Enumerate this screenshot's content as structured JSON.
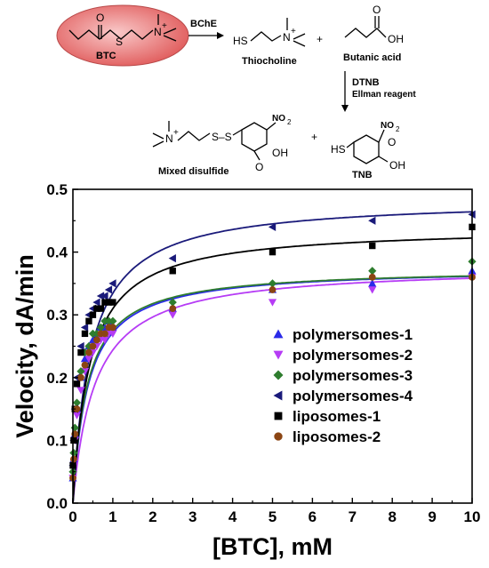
{
  "scheme": {
    "substrate": "BTC",
    "enzyme": "BChE",
    "product_1": "Thiocholine",
    "product_2": "Butanic acid",
    "reagent_line_1": "DTNB",
    "reagent_line_2": "Ellman reagent",
    "product_3": "Mixed disulfide",
    "product_4": "TNB",
    "plus": "+",
    "atom_S": "S",
    "atom_O": "O",
    "atom_OH": "OH",
    "atom_HS": "HS",
    "atom_N": "N",
    "atom_plus": "+",
    "atom_S_S": "S–S",
    "group_NO2": "NO",
    "group_NO2_sub": "2",
    "bubble_color": "#e87b7b"
  },
  "chart_data": {
    "type": "scatter",
    "xlabel": "[BTC], mM",
    "ylabel": "Velocity, dA/min",
    "xlim": [
      0,
      10
    ],
    "ylim": [
      0,
      0.5
    ],
    "xticks": [
      "0",
      "1",
      "2",
      "3",
      "4",
      "5",
      "6",
      "7",
      "8",
      "9",
      "10"
    ],
    "yticks": [
      "0.0",
      "0.1",
      "0.2",
      "0.3",
      "0.4",
      "0.5"
    ],
    "legend_position": "center-right",
    "x": [
      0.0,
      0.02,
      0.05,
      0.1,
      0.2,
      0.3,
      0.4,
      0.5,
      0.6,
      0.7,
      0.8,
      0.9,
      1.0,
      2.5,
      5.0,
      7.5,
      10.0
    ],
    "series": [
      {
        "name": "polymersomes-1",
        "color": "#2a2ae8",
        "marker": "triangle-up",
        "values": [
          0.04,
          0.07,
          0.11,
          0.15,
          0.2,
          0.23,
          0.25,
          0.26,
          0.27,
          0.28,
          0.28,
          0.29,
          0.28,
          0.31,
          0.34,
          0.35,
          0.37
        ],
        "fit": {
          "vmax": 0.375,
          "km": 0.38
        }
      },
      {
        "name": "polymersomes-2",
        "color": "#b63cf5",
        "marker": "triangle-down",
        "values": [
          0.04,
          0.06,
          0.1,
          0.14,
          0.18,
          0.21,
          0.23,
          0.24,
          0.25,
          0.26,
          0.26,
          0.27,
          0.27,
          0.3,
          0.32,
          0.34,
          0.36
        ],
        "fit": {
          "vmax": 0.378,
          "km": 0.55
        }
      },
      {
        "name": "polymersomes-3",
        "color": "#2e7d2e",
        "marker": "diamond",
        "values": [
          0.05,
          0.08,
          0.12,
          0.16,
          0.21,
          0.24,
          0.25,
          0.27,
          0.27,
          0.28,
          0.29,
          0.29,
          0.29,
          0.32,
          0.35,
          0.37,
          0.385
        ],
        "fit": {
          "vmax": 0.375,
          "km": 0.36
        }
      },
      {
        "name": "polymersomes-4",
        "color": "#1a1a7a",
        "marker": "triangle-left",
        "values": [
          0.06,
          0.1,
          0.15,
          0.2,
          0.25,
          0.28,
          0.3,
          0.31,
          0.32,
          0.33,
          0.33,
          0.34,
          0.35,
          0.39,
          0.44,
          0.45,
          0.46
        ],
        "fit": {
          "vmax": 0.485,
          "km": 0.45
        }
      },
      {
        "name": "liposomes-1",
        "color": "#000000",
        "marker": "square",
        "values": [
          0.06,
          0.1,
          0.15,
          0.19,
          0.24,
          0.27,
          0.29,
          0.3,
          0.31,
          0.31,
          0.32,
          0.32,
          0.32,
          0.37,
          0.4,
          0.41,
          0.44
        ],
        "fit": {
          "vmax": 0.44,
          "km": 0.42
        }
      },
      {
        "name": "liposomes-2",
        "color": "#8b4513",
        "marker": "circle",
        "values": [
          0.04,
          0.07,
          0.11,
          0.15,
          0.2,
          0.22,
          0.24,
          0.25,
          0.26,
          0.27,
          0.27,
          0.28,
          0.28,
          0.31,
          0.34,
          0.36,
          0.36
        ],
        "fit": null
      }
    ]
  }
}
